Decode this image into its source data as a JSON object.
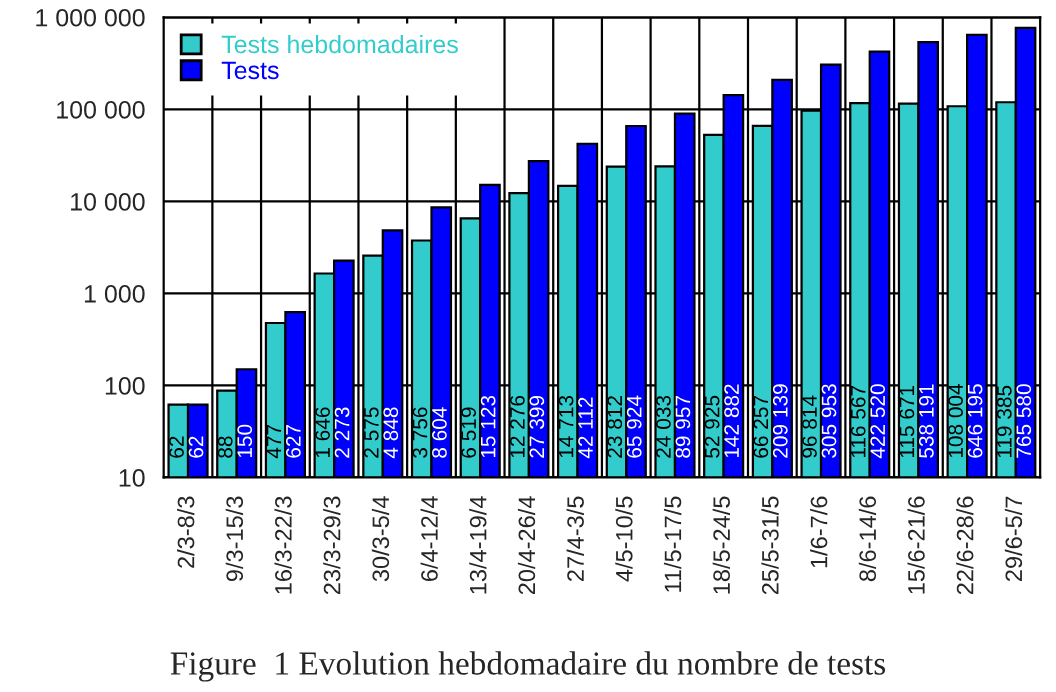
{
  "chart_data": {
    "type": "bar",
    "log": "y",
    "categories": [
      "2/3-8/3",
      "9/3-15/3",
      "16/3-22/3",
      "23/3-29/3",
      "30/3-5/4",
      "6/4-12/4",
      "13/4-19/4",
      "20/4-26/4",
      "27/4-3/5",
      "4/5-10/5",
      "11/5-17/5",
      "18/5-24/5",
      "25/5-31/5",
      "1/6-7/6",
      "8/6-14/6",
      "15/6-21/6",
      "22/6-28/6",
      "29/6-5/7"
    ],
    "series": [
      {
        "name": "Tests hebdomadaires",
        "color": "#33cccc",
        "values": [
          62,
          88,
          477,
          1646,
          2575,
          3756,
          6519,
          12276,
          14713,
          23812,
          24033,
          52925,
          66257,
          96814,
          116567,
          115671,
          108004,
          119385
        ],
        "value_labels": [
          "62",
          "88",
          "477",
          "1 646",
          "2 575",
          "3 756",
          "6 519",
          "12 276",
          "14 713",
          "23 812",
          "24 033",
          "52 925",
          "66 257",
          "96 814",
          "116 567",
          "115 671",
          "108 004",
          "119 385"
        ]
      },
      {
        "name": "Tests",
        "color": "#0000ff",
        "values": [
          62,
          150,
          627,
          2273,
          4848,
          8604,
          15123,
          27399,
          42112,
          65924,
          89957,
          142882,
          209139,
          305953,
          422520,
          538191,
          646195,
          765580
        ],
        "value_labels": [
          "62",
          "150",
          "627",
          "2 273",
          "4 848",
          "8 604",
          "15 123",
          "27 399",
          "42 112",
          "65 924",
          "89 957",
          "142 882",
          "209 139",
          "305 953",
          "422 520",
          "538 191",
          "646 195",
          "765 580"
        ]
      }
    ],
    "ylim": [
      10,
      1000000
    ],
    "yticks": [
      {
        "value": 10,
        "label": "10"
      },
      {
        "value": 100,
        "label": "100"
      },
      {
        "value": 1000,
        "label": "1 000"
      },
      {
        "value": 10000,
        "label": "10 000"
      },
      {
        "value": 100000,
        "label": "100 000"
      },
      {
        "value": 1000000,
        "label": "1 000 000"
      }
    ],
    "grid": true,
    "legend": "top left",
    "annotations": [
      "Figure  1 Evolution hebdomadaire du nombre de tests"
    ]
  }
}
